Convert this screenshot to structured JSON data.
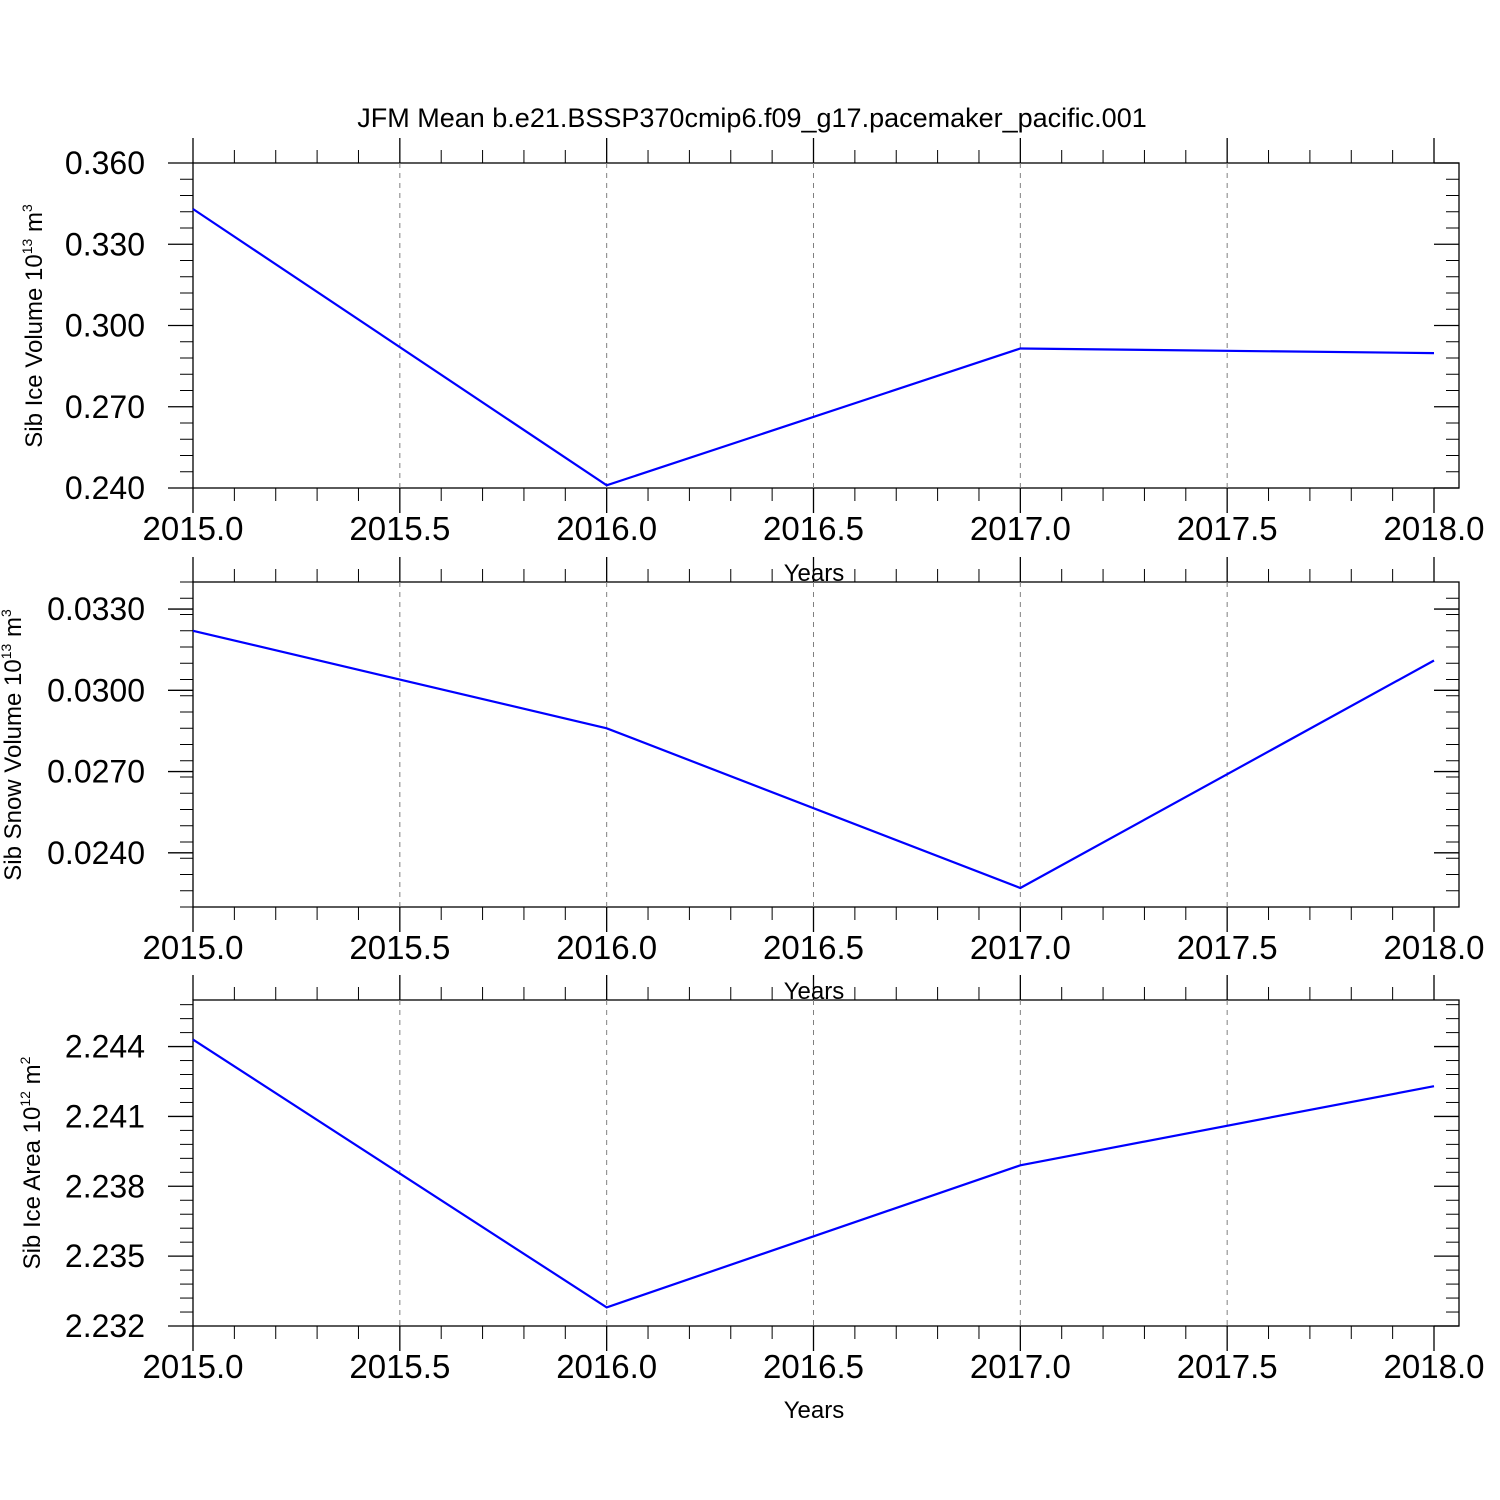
{
  "title": "JFM Mean b.e21.BSSP370cmip6.f09_g17.pacemaker_pacific.001",
  "colors": {
    "line": "#0000ff",
    "axis": "#000000",
    "grid": "#808080"
  },
  "chart_data": [
    {
      "type": "line",
      "ylabel_main": "Sib Ice Volume 10",
      "ylabel_exp": "13",
      "ylabel_unit": " m",
      "ylabel_unit_exp": "3",
      "xlabel": "Years",
      "xlim": [
        2015.0,
        2018.0
      ],
      "ylim": [
        0.24,
        0.36
      ],
      "x_ticks": [
        "2015.0",
        "2015.5",
        "2016.0",
        "2016.5",
        "2017.0",
        "2017.5",
        "2018.0"
      ],
      "y_ticks": [
        "0.240",
        "0.270",
        "0.300",
        "0.330",
        "0.360"
      ],
      "x": [
        2015,
        2016,
        2017,
        2018
      ],
      "values": [
        0.343,
        0.241,
        0.2915,
        0.2898
      ],
      "grid": "vertical dashed at x ticks"
    },
    {
      "type": "line",
      "ylabel_main": "Sib Snow Volume 10",
      "ylabel_exp": "13",
      "ylabel_unit": " m",
      "ylabel_unit_exp": "3",
      "xlabel": "Years",
      "xlim": [
        2015.0,
        2018.0
      ],
      "ylim": [
        0.022,
        0.034
      ],
      "x_ticks": [
        "2015.0",
        "2015.5",
        "2016.0",
        "2016.5",
        "2017.0",
        "2017.5",
        "2018.0"
      ],
      "y_ticks": [
        "0.0240",
        "0.0270",
        "0.0300",
        "0.0330"
      ],
      "x": [
        2015,
        2016,
        2017,
        2018
      ],
      "values": [
        0.0322,
        0.0286,
        0.0227,
        0.0311
      ],
      "grid": "vertical dashed at x ticks"
    },
    {
      "type": "line",
      "ylabel_main": "Sib Ice Area 10",
      "ylabel_exp": "12",
      "ylabel_unit": " m",
      "ylabel_unit_exp": "2",
      "xlabel": "Years",
      "xlim": [
        2015.0,
        2018.0
      ],
      "ylim": [
        2.232,
        2.246
      ],
      "x_ticks": [
        "2015.0",
        "2015.5",
        "2016.0",
        "2016.5",
        "2017.0",
        "2017.5",
        "2018.0"
      ],
      "y_ticks": [
        "2.232",
        "2.235",
        "2.238",
        "2.241",
        "2.244"
      ],
      "x": [
        2015,
        2016,
        2017,
        2018
      ],
      "values": [
        2.2443,
        2.2328,
        2.2389,
        2.2423
      ],
      "grid": "vertical dashed at x ticks"
    }
  ]
}
